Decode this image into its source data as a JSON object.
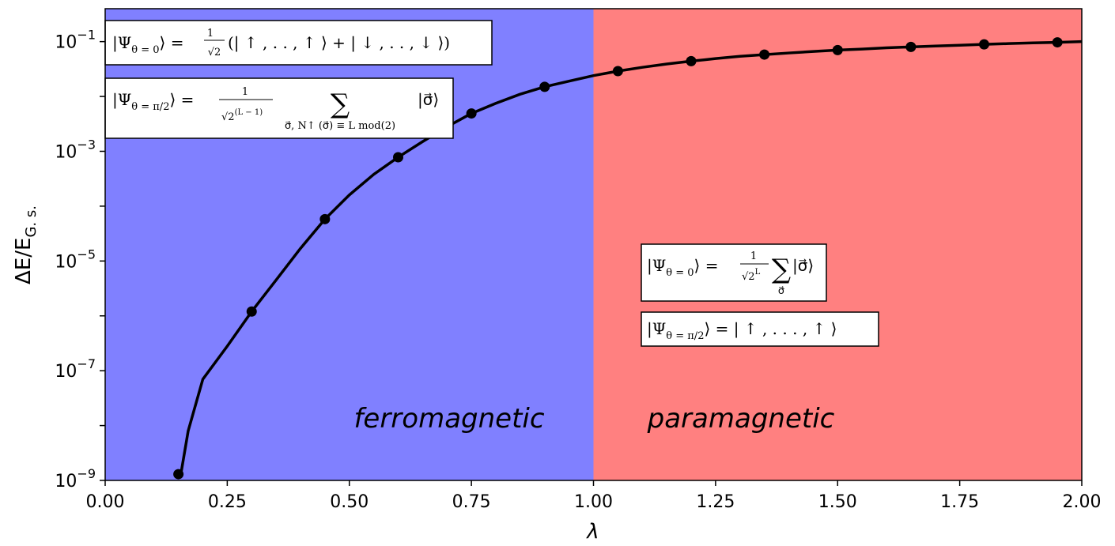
{
  "chart_data": {
    "type": "line",
    "xlabel": "λ",
    "ylabel": "ΔE/E",
    "ylabel_sub": "G. s.",
    "xlim": [
      0.0,
      2.0
    ],
    "ylim_log10": [
      -9,
      0.0
    ],
    "yscale": "log",
    "x_ticks": [
      0.0,
      0.25,
      0.5,
      0.75,
      1.0,
      1.25,
      1.5,
      1.75,
      2.0
    ],
    "x_tick_labels": [
      "0.00",
      "0.25",
      "0.50",
      "0.75",
      "1.00",
      "1.25",
      "1.50",
      "1.75",
      "2.00"
    ],
    "y_ticks_log10": [
      -9,
      -7,
      -5,
      -3,
      -1
    ],
    "y_tick_labels": [
      {
        "base": "10",
        "exp": "−9"
      },
      {
        "base": "10",
        "exp": "−7"
      },
      {
        "base": "10",
        "exp": "−5"
      },
      {
        "base": "10",
        "exp": "−3"
      },
      {
        "base": "10",
        "exp": "−1"
      }
    ],
    "regions": [
      {
        "label": "ferromagnetic",
        "x_range": [
          0.0,
          1.0
        ],
        "color": "#8080ff"
      },
      {
        "label": "paramagnetic",
        "x_range": [
          1.0,
          2.0
        ],
        "color": "#ff8080"
      }
    ],
    "grid": false,
    "series": [
      {
        "style": "markers",
        "color": "#000000",
        "points": [
          {
            "x": 0.15,
            "y": 1.3e-09
          },
          {
            "x": 0.3,
            "y": 1.2e-06
          },
          {
            "x": 0.45,
            "y": 5.8e-05
          },
          {
            "x": 0.6,
            "y": 0.00078
          },
          {
            "x": 0.75,
            "y": 0.0049
          },
          {
            "x": 0.9,
            "y": 0.015
          },
          {
            "x": 1.05,
            "y": 0.029
          },
          {
            "x": 1.2,
            "y": 0.044
          },
          {
            "x": 1.35,
            "y": 0.058
          },
          {
            "x": 1.5,
            "y": 0.07
          },
          {
            "x": 1.65,
            "y": 0.08
          },
          {
            "x": 1.8,
            "y": 0.089
          },
          {
            "x": 1.95,
            "y": 0.097
          }
        ]
      },
      {
        "style": "line",
        "color": "#000000",
        "points": [
          {
            "x": 0.155,
            "y": 1.3e-09
          },
          {
            "x": 0.17,
            "y": 8e-09
          },
          {
            "x": 0.2,
            "y": 7e-08
          },
          {
            "x": 0.25,
            "y": 2.8e-07
          },
          {
            "x": 0.3,
            "y": 1.2e-06
          },
          {
            "x": 0.35,
            "y": 4.5e-06
          },
          {
            "x": 0.4,
            "y": 1.7e-05
          },
          {
            "x": 0.45,
            "y": 5.8e-05
          },
          {
            "x": 0.5,
            "y": 0.00016
          },
          {
            "x": 0.55,
            "y": 0.00038
          },
          {
            "x": 0.6,
            "y": 0.00078
          },
          {
            "x": 0.65,
            "y": 0.0015
          },
          {
            "x": 0.7,
            "y": 0.0028
          },
          {
            "x": 0.75,
            "y": 0.0049
          },
          {
            "x": 0.8,
            "y": 0.0075
          },
          {
            "x": 0.85,
            "y": 0.011
          },
          {
            "x": 0.9,
            "y": 0.015
          },
          {
            "x": 0.95,
            "y": 0.019
          },
          {
            "x": 1.0,
            "y": 0.024
          },
          {
            "x": 1.05,
            "y": 0.029
          },
          {
            "x": 1.1,
            "y": 0.034
          },
          {
            "x": 1.15,
            "y": 0.039
          },
          {
            "x": 1.2,
            "y": 0.044
          },
          {
            "x": 1.25,
            "y": 0.049
          },
          {
            "x": 1.3,
            "y": 0.054
          },
          {
            "x": 1.35,
            "y": 0.058
          },
          {
            "x": 1.4,
            "y": 0.062
          },
          {
            "x": 1.45,
            "y": 0.066
          },
          {
            "x": 1.5,
            "y": 0.07
          },
          {
            "x": 1.55,
            "y": 0.073
          },
          {
            "x": 1.6,
            "y": 0.077
          },
          {
            "x": 1.65,
            "y": 0.08
          },
          {
            "x": 1.7,
            "y": 0.083
          },
          {
            "x": 1.75,
            "y": 0.086
          },
          {
            "x": 1.8,
            "y": 0.089
          },
          {
            "x": 1.85,
            "y": 0.092
          },
          {
            "x": 1.9,
            "y": 0.095
          },
          {
            "x": 1.95,
            "y": 0.097
          },
          {
            "x": 2.0,
            "y": 0.1
          }
        ]
      }
    ],
    "annotations": {
      "ferro_state_0": {
        "lhs": "|Ψ",
        "lhs_sub": "θ = 0",
        "frac_num": "1",
        "frac_den": "√2",
        "rhs": "(| ↑ , . . , ↑ ⟩ + | ↓ , . . , ↓ ⟩)"
      },
      "ferro_state_pi2": {
        "lhs": "|Ψ",
        "lhs_sub": "θ = π/2",
        "frac_num": "1",
        "frac_den": "√2",
        "frac_den_exp": "(L − 1)",
        "sum_symbol": "∑",
        "sum_sub": "σ⃗, N↑ (σ⃗) ≡ L mod(2)",
        "rhs": "|σ⃗⟩"
      },
      "para_state_0": {
        "lhs": "|Ψ",
        "lhs_sub": "θ = 0",
        "frac_num": "1",
        "frac_den": "√2",
        "frac_den_exp": "L",
        "sum_symbol": "∑",
        "sum_sub": "σ⃗",
        "rhs": "|σ⃗⟩"
      },
      "para_state_pi2": {
        "lhs": "|Ψ",
        "lhs_sub": "θ = π/2",
        "rhs": "= | ↑ , . . . , ↑ ⟩"
      }
    }
  }
}
